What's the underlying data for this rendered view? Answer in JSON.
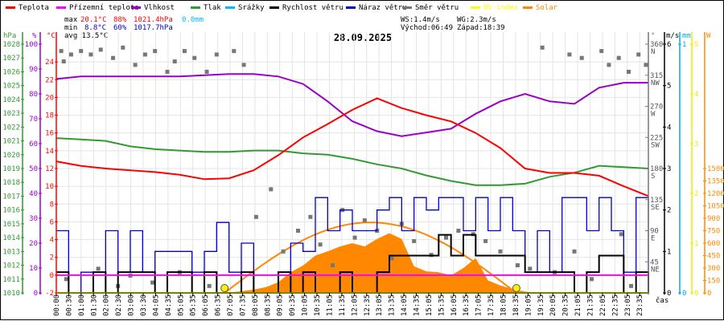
{
  "legend": [
    {
      "label": "Teplota",
      "color": "#ff0000"
    },
    {
      "label": "Přízemní teplota",
      "color": "#ff00ff"
    },
    {
      "label": "Vlhkost",
      "color": "#9900cc"
    },
    {
      "label": "Tlak",
      "color": "#339933"
    },
    {
      "label": "Srážky",
      "color": "#00bbff"
    },
    {
      "label": "Rychlost větru",
      "color": "#000000"
    },
    {
      "label": "Náraz větru",
      "color": "#0000cc"
    },
    {
      "label": "Směr větru",
      "color": "#777777"
    },
    {
      "label": "UV index",
      "color": "#ffff00"
    },
    {
      "label": "Solar",
      "color": "#ff8800"
    }
  ],
  "stats": {
    "max_label": "max",
    "min_label": "min",
    "max_temp": "20.1°C",
    "max_hum": "88%",
    "max_press": "1021.4hPa",
    "rain": "0.0mm",
    "min_temp": "8.8°C",
    "min_hum": "60%",
    "min_press": "1017.7hPa",
    "avg": "avg 13.5°C",
    "ws": "WS:1.4m/s",
    "wg": "WG:2.3m/s",
    "sunrise": "Východ:06:49",
    "sunset": "Západ:18:39"
  },
  "chart_data": {
    "type": "line",
    "title": "28.09.2025",
    "xlabel": "čas",
    "x_tick_labels": [
      "00:00",
      "00:30",
      "01:00",
      "01:30",
      "02:00",
      "02:30",
      "03:00",
      "03:30",
      "04:05",
      "04:35",
      "05:05",
      "05:35",
      "06:05",
      "06:35",
      "07:05",
      "07:35",
      "08:05",
      "08:35",
      "09:05",
      "09:35",
      "10:05",
      "10:35",
      "11:05",
      "11:35",
      "12:05",
      "12:35",
      "13:05",
      "13:35",
      "14:05",
      "14:35",
      "15:05",
      "15:35",
      "16:05",
      "16:35",
      "17:05",
      "17:35",
      "18:05",
      "18:35",
      "19:05",
      "19:35",
      "20:05",
      "20:35",
      "21:05",
      "21:35",
      "22:05",
      "22:35",
      "23:05",
      "23:35"
    ],
    "axes": {
      "pressure": {
        "unit": "hPa",
        "range": [
          1010,
          1028
        ],
        "ticks": [
          1010,
          1011,
          1012,
          1013,
          1014,
          1015,
          1016,
          1017,
          1018,
          1019,
          1020,
          1021,
          1022,
          1023,
          1024,
          1025,
          1026,
          1027,
          1028
        ]
      },
      "humidity": {
        "unit": "%",
        "range": [
          0,
          100
        ],
        "ticks": [
          0,
          10,
          20,
          30,
          40,
          50,
          60,
          70,
          80,
          90,
          100
        ]
      },
      "temperature": {
        "unit": "°C",
        "range": [
          -2,
          26
        ],
        "ticks": [
          -2,
          0,
          2,
          4,
          6,
          8,
          10,
          12,
          14,
          16,
          18,
          20,
          22,
          24
        ]
      },
      "direction": {
        "unit": "°",
        "range": [
          0,
          360
        ],
        "ticks": [
          {
            "v": 45,
            "l": "NE"
          },
          {
            "v": 90,
            "l": "E"
          },
          {
            "v": 135,
            "l": "SE"
          },
          {
            "v": 180,
            "l": "S"
          },
          {
            "v": 225,
            "l": "SW"
          },
          {
            "v": 270,
            "l": "W"
          },
          {
            "v": 315,
            "l": "NW"
          },
          {
            "v": 360,
            "l": "N"
          }
        ]
      },
      "wind": {
        "unit": "m/s",
        "range": [
          0,
          6
        ],
        "ticks": [
          0,
          1,
          2,
          3,
          4,
          5,
          6
        ]
      },
      "rain": {
        "unit": "mm",
        "range": [
          0,
          1
        ],
        "ticks": [
          0,
          1
        ]
      },
      "uv": {
        "unit": "",
        "range": [
          0,
          5
        ],
        "ticks": [
          0,
          1,
          2,
          3,
          4,
          5
        ]
      },
      "solar": {
        "unit": "W",
        "range": [
          0,
          3000
        ],
        "ticks": [
          0,
          150,
          300,
          450,
          600,
          750,
          900,
          1050,
          1200,
          1350,
          1500
        ]
      }
    },
    "hours_hourly": [
      0,
      1,
      2,
      3,
      4,
      5,
      6,
      7,
      8,
      9,
      10,
      11,
      12,
      13,
      14,
      15,
      16,
      17,
      18,
      19,
      20,
      21,
      22,
      23,
      24
    ],
    "temperature": [
      12.8,
      12.3,
      12.0,
      11.8,
      11.6,
      11.3,
      10.8,
      10.9,
      11.8,
      13.5,
      15.5,
      17.0,
      18.6,
      19.9,
      18.8,
      18.0,
      17.3,
      16.0,
      14.3,
      12.0,
      11.5,
      11.5,
      11.2,
      10.0,
      8.9
    ],
    "apparent_temperature": [
      0,
      0,
      0,
      0,
      0,
      0,
      0,
      0,
      0,
      0,
      0,
      0,
      0,
      0,
      0,
      0,
      0,
      0,
      0,
      0,
      0,
      0,
      0,
      0,
      0
    ],
    "humidity": [
      86,
      87,
      87,
      87,
      87,
      87,
      87.5,
      88,
      88,
      87,
      84,
      77,
      69,
      65,
      63,
      64.5,
      66,
      72,
      77,
      80,
      77,
      76,
      82.5,
      84.5,
      84.5
    ],
    "pressure": [
      1021.2,
      1021.1,
      1021.0,
      1020.6,
      1020.4,
      1020.3,
      1020.2,
      1020.2,
      1020.3,
      1020.3,
      1020.1,
      1020.0,
      1019.7,
      1019.3,
      1019.0,
      1018.5,
      1018.1,
      1017.8,
      1017.8,
      1017.9,
      1018.4,
      1018.7,
      1019.2,
      1019.1,
      1019.0
    ],
    "rain": [
      0,
      0,
      0,
      0,
      0,
      0,
      0,
      0,
      0,
      0,
      0,
      0,
      0,
      0,
      0,
      0,
      0,
      0,
      0,
      0,
      0,
      0,
      0,
      0,
      0
    ],
    "uv": [
      0,
      0,
      0,
      0,
      0,
      0,
      0,
      0,
      0,
      0,
      0,
      0,
      0,
      0,
      0,
      0,
      0,
      0,
      0,
      0,
      0,
      0,
      0,
      0,
      0
    ],
    "wind_speed_halfhourly": [
      0.5,
      0,
      0,
      0.5,
      0,
      0.5,
      0.5,
      0.5,
      0,
      0.5,
      0.5,
      0,
      0.5,
      0,
      0,
      0.5,
      0,
      0,
      0.5,
      0,
      0.5,
      0,
      0,
      0.5,
      0,
      0,
      0.5,
      0.9,
      0.9,
      0.9,
      0.9,
      1.4,
      0.9,
      1.4,
      0.9,
      0.9,
      0.9,
      0.9,
      0.5,
      0.5,
      0.5,
      0.5,
      0,
      0.5,
      0.9,
      0.9,
      0,
      0.5,
      0
    ],
    "wind_gust_halfhourly": [
      1.5,
      0,
      0.5,
      0.5,
      1.5,
      0.5,
      1.5,
      0.5,
      1.0,
      1.0,
      1.0,
      0.5,
      1.0,
      1.7,
      0.5,
      1.2,
      0,
      0,
      0.5,
      1.2,
      1.0,
      2.3,
      1.5,
      2.0,
      1.5,
      1.5,
      2.0,
      2.3,
      1.5,
      2.3,
      2.0,
      2.3,
      2.3,
      1.5,
      2.3,
      1.5,
      2.3,
      1.5,
      0.5,
      1.5,
      0.5,
      2.3,
      2.3,
      1.5,
      2.3,
      1.5,
      0.5,
      2.3,
      0.5
    ],
    "solar_halfhourly": [
      0,
      0,
      0,
      0,
      0,
      0,
      0,
      0,
      0,
      0,
      0,
      0,
      0,
      0,
      5,
      20,
      40,
      70,
      130,
      250,
      330,
      450,
      500,
      560,
      600,
      560,
      650,
      720,
      650,
      320,
      260,
      250,
      210,
      300,
      420,
      150,
      90,
      45,
      15,
      0,
      0,
      0,
      0,
      0,
      0,
      0,
      0,
      0,
      0
    ],
    "solar_theoretical_max": 850,
    "sunrise_hour": 6.82,
    "sunset_hour": 18.65,
    "wind_direction_points": [
      [
        0.2,
        350
      ],
      [
        0.3,
        335
      ],
      [
        0.6,
        345
      ],
      [
        1.0,
        350
      ],
      [
        1.4,
        345
      ],
      [
        1.8,
        352
      ],
      [
        2.3,
        340
      ],
      [
        2.7,
        355
      ],
      [
        3.2,
        330
      ],
      [
        3.6,
        345
      ],
      [
        4.0,
        350
      ],
      [
        4.5,
        320
      ],
      [
        4.8,
        335
      ],
      [
        5.2,
        350
      ],
      [
        5.6,
        340
      ],
      [
        6.1,
        320
      ],
      [
        6.5,
        345
      ],
      [
        7.2,
        350
      ],
      [
        7.6,
        330
      ],
      [
        0.4,
        20
      ],
      [
        1.7,
        35
      ],
      [
        2.5,
        10
      ],
      [
        3.0,
        25
      ],
      [
        3.9,
        15
      ],
      [
        5.0,
        30
      ],
      [
        6.2,
        10
      ],
      [
        8.1,
        110
      ],
      [
        8.7,
        150
      ],
      [
        9.2,
        60
      ],
      [
        9.8,
        90
      ],
      [
        10.3,
        110
      ],
      [
        10.7,
        70
      ],
      [
        11.2,
        40
      ],
      [
        11.6,
        120
      ],
      [
        12.1,
        80
      ],
      [
        12.5,
        105
      ],
      [
        13.0,
        90
      ],
      [
        13.6,
        50
      ],
      [
        14.0,
        100
      ],
      [
        14.5,
        75
      ],
      [
        15.2,
        55
      ],
      [
        15.8,
        80
      ],
      [
        16.3,
        90
      ],
      [
        16.9,
        85
      ],
      [
        17.4,
        75
      ],
      [
        18.0,
        60
      ],
      [
        18.7,
        40
      ],
      [
        19.2,
        35
      ],
      [
        19.7,
        355
      ],
      [
        20.2,
        30
      ],
      [
        20.8,
        345
      ],
      [
        21.0,
        60
      ],
      [
        21.3,
        340
      ],
      [
        21.7,
        20
      ],
      [
        22.1,
        350
      ],
      [
        22.4,
        330
      ],
      [
        22.8,
        340
      ],
      [
        23.2,
        320
      ],
      [
        23.6,
        345
      ],
      [
        23.9,
        330
      ],
      [
        22.9,
        85
      ],
      [
        23.3,
        10
      ]
    ]
  }
}
